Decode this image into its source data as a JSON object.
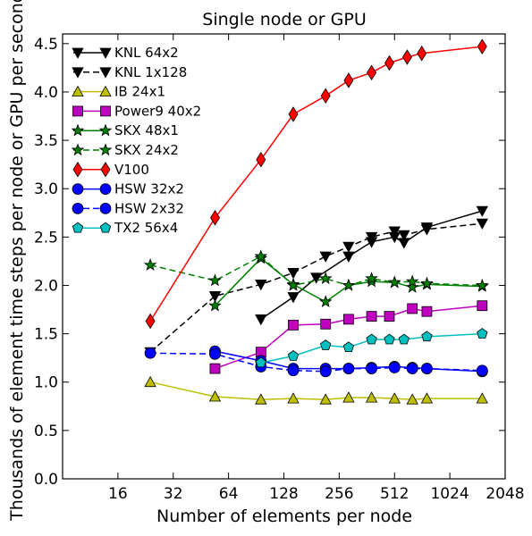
{
  "chart_data": {
    "type": "line",
    "title": "Single node or GPU",
    "xlabel": "Number of elements per node",
    "ylabel": "Thousands of element  time steps per node or GPU per second",
    "xscale": "log2",
    "xlim": [
      8,
      2048
    ],
    "ylim": [
      0.0,
      4.6
    ],
    "x_ticks": [
      16,
      32,
      64,
      128,
      256,
      512,
      1024,
      2048
    ],
    "x_tick_labels": [
      "16",
      "32",
      "64",
      "128",
      "256",
      "512",
      "1024",
      "2048"
    ],
    "y_ticks": [
      0.0,
      0.5,
      1.0,
      1.5,
      2.0,
      2.5,
      3.0,
      3.5,
      4.0,
      4.5
    ],
    "y_tick_labels": [
      "0.0",
      "0.5",
      "1.0",
      "1.5",
      "2.0",
      "2.5",
      "3.0",
      "3.5",
      "4.0",
      "4.5"
    ],
    "grid": false,
    "legend_position": "top-left",
    "series": [
      {
        "name": "KNL 64x2",
        "color": "#000000",
        "marker": "triangle-down",
        "dash": "solid",
        "x": [
          96,
          144,
          192,
          288,
          384,
          512,
          576,
          768,
          1536
        ],
        "y": [
          1.65,
          1.88,
          2.08,
          2.3,
          2.45,
          2.5,
          2.44,
          2.6,
          2.77
        ]
      },
      {
        "name": "KNL 1x128",
        "color": "#000000",
        "marker": "triangle-down",
        "dash": "dashed",
        "x": [
          24,
          54,
          96,
          144,
          216,
          288,
          384,
          512,
          576,
          768,
          1536
        ],
        "y": [
          1.31,
          1.89,
          2.01,
          2.13,
          2.3,
          2.4,
          2.5,
          2.56,
          2.52,
          2.58,
          2.64
        ]
      },
      {
        "name": "IB 24x1",
        "color": "#bfbf00",
        "marker": "triangle-up",
        "dash": "solid",
        "x": [
          24,
          54,
          96,
          144,
          216,
          288,
          384,
          512,
          640,
          768,
          1536
        ],
        "y": [
          1.0,
          0.85,
          0.82,
          0.83,
          0.82,
          0.84,
          0.84,
          0.83,
          0.82,
          0.83,
          0.83
        ]
      },
      {
        "name": "Power9 40x2",
        "color": "#bf00bf",
        "marker": "square",
        "dash": "solid",
        "x": [
          54,
          96,
          144,
          216,
          288,
          384,
          480,
          640,
          768,
          1536
        ],
        "y": [
          1.14,
          1.31,
          1.59,
          1.6,
          1.65,
          1.68,
          1.68,
          1.76,
          1.73,
          1.79
        ]
      },
      {
        "name": "SKX 48x1",
        "color": "#007f00",
        "marker": "star",
        "dash": "solid",
        "x": [
          54,
          96,
          144,
          216,
          288,
          384,
          512,
          640,
          768,
          1536
        ],
        "y": [
          1.79,
          2.28,
          2.01,
          1.83,
          2.0,
          2.04,
          2.03,
          1.98,
          2.01,
          1.99
        ]
      },
      {
        "name": "SKX 24x2",
        "color": "#007f00",
        "marker": "star",
        "dash": "dashed",
        "x": [
          24,
          54,
          96,
          144,
          216,
          288,
          384,
          512,
          640,
          768,
          1536
        ],
        "y": [
          2.21,
          2.05,
          2.3,
          2.0,
          2.07,
          2.0,
          2.07,
          2.03,
          2.04,
          2.02,
          2.0
        ]
      },
      {
        "name": "V100",
        "color": "#ff0000",
        "marker": "diamond",
        "dash": "solid",
        "x": [
          24,
          54,
          96,
          144,
          216,
          288,
          384,
          480,
          600,
          720,
          1536
        ],
        "y": [
          1.63,
          2.7,
          3.3,
          3.77,
          3.96,
          4.12,
          4.2,
          4.3,
          4.36,
          4.4,
          4.47
        ]
      },
      {
        "name": "HSW 32x2",
        "color": "#0000ff",
        "marker": "circle",
        "dash": "solid",
        "x": [
          54,
          96,
          144,
          216,
          288,
          384,
          512,
          640,
          768,
          1536
        ],
        "y": [
          1.32,
          1.22,
          1.14,
          1.14,
          1.14,
          1.15,
          1.16,
          1.15,
          1.14,
          1.11
        ]
      },
      {
        "name": "HSW 2x32",
        "color": "#0000ff",
        "marker": "circle",
        "dash": "dashed",
        "x": [
          24,
          54,
          96,
          144,
          216,
          288,
          384,
          512,
          640,
          768,
          1536
        ],
        "y": [
          1.3,
          1.29,
          1.16,
          1.12,
          1.11,
          1.14,
          1.14,
          1.15,
          1.14,
          1.14,
          1.12
        ]
      },
      {
        "name": "TX2 56x4",
        "color": "#00bfbf",
        "marker": "pentagon",
        "dash": "solid",
        "x": [
          96,
          144,
          216,
          288,
          384,
          480,
          576,
          768,
          1536
        ],
        "y": [
          1.2,
          1.27,
          1.38,
          1.36,
          1.44,
          1.44,
          1.44,
          1.47,
          1.5
        ]
      }
    ]
  }
}
